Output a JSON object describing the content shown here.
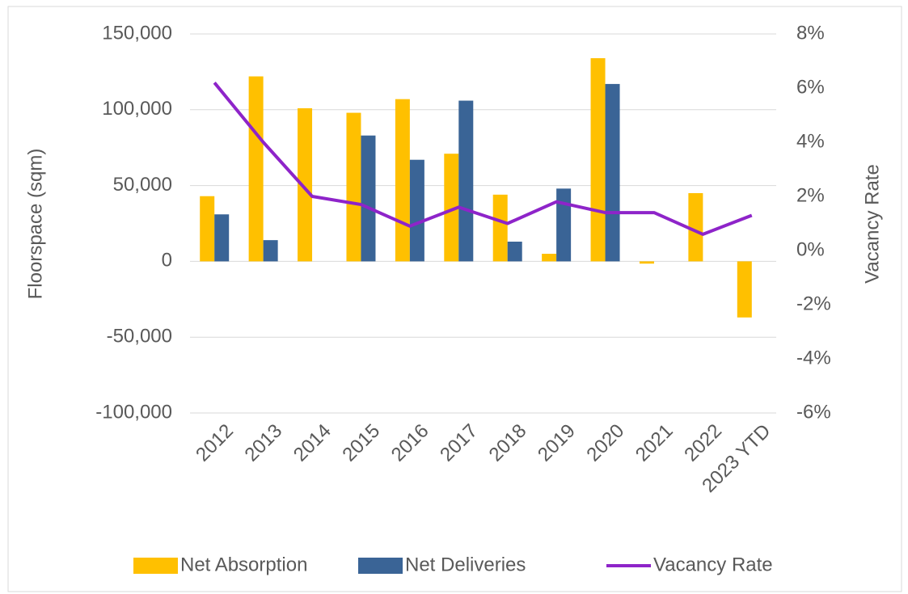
{
  "chart_data": {
    "type": "bar-line",
    "categories": [
      "2012",
      "2013",
      "2014",
      "2015",
      "2016",
      "2017",
      "2018",
      "2019",
      "2020",
      "2021",
      "2022",
      "2023 YTD"
    ],
    "series": [
      {
        "name": "Net Absorption",
        "color": "#FFC000",
        "type": "bar",
        "values": [
          43000,
          122000,
          101000,
          98000,
          107000,
          71000,
          44000,
          5000,
          134000,
          -1500,
          45000,
          -37000
        ]
      },
      {
        "name": "Net Deliveries",
        "color": "#3A6496",
        "type": "bar",
        "values": [
          31000,
          14000,
          0,
          83000,
          67000,
          106000,
          13000,
          48000,
          117000,
          0,
          0,
          0
        ]
      },
      {
        "name": "Vacancy Rate",
        "color": "#8E24C9",
        "type": "line",
        "axis": "y2",
        "values": [
          6.2,
          4.0,
          2.0,
          1.7,
          0.9,
          1.6,
          1.0,
          1.8,
          1.4,
          1.4,
          0.6,
          1.3
        ]
      }
    ],
    "ylabel": "Floorspace (sqm)",
    "y2label": "Vacancy Rate",
    "ylim": [
      -100000,
      150000
    ],
    "yticks": [
      {
        "value": -100000,
        "label": "-100,000"
      },
      {
        "value": -50000,
        "label": "-50,000"
      },
      0,
      {
        "value": 50000,
        "label": "50,000"
      },
      {
        "value": 100000,
        "label": "100,000"
      },
      {
        "value": 150000,
        "label": "150,000"
      }
    ],
    "y2lim": [
      -6,
      8
    ],
    "y2ticks": [
      {
        "value": -6,
        "label": "-6%"
      },
      {
        "value": -4,
        "label": "-4%"
      },
      {
        "value": -2,
        "label": "-2%"
      },
      {
        "value": 0,
        "label": "0%"
      },
      {
        "value": 2,
        "label": "2%"
      },
      {
        "value": 4,
        "label": "4%"
      },
      {
        "value": 6,
        "label": "6%"
      },
      {
        "value": 8,
        "label": "8%"
      }
    ],
    "grid": true,
    "legend": "bottom"
  }
}
